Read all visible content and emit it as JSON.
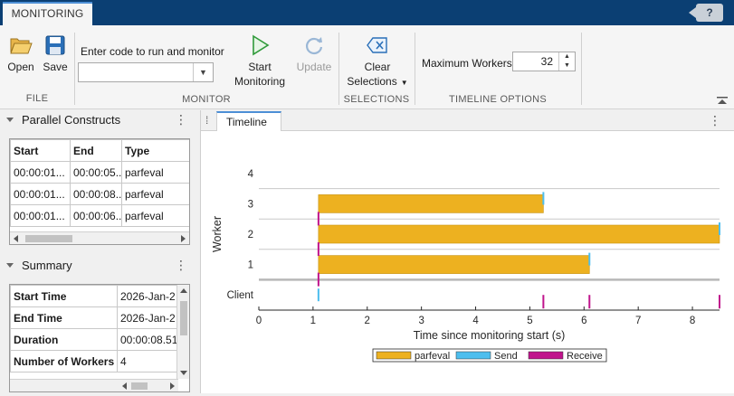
{
  "top_tab": {
    "label": "MONITORING"
  },
  "help_label": "?",
  "toolstrip": {
    "file": {
      "title": "FILE",
      "open_label": "Open",
      "save_label": "Save"
    },
    "monitor": {
      "title": "MONITOR",
      "code_label": "Enter code to run and monitor",
      "code_value": "",
      "start_label_1": "Start",
      "start_label_2": "Monitoring",
      "update_label": "Update"
    },
    "selections": {
      "title": "SELECTIONS",
      "clear_label_1": "Clear",
      "clear_label_2": "Selections"
    },
    "timeline_options": {
      "title": "TIMELINE OPTIONS",
      "max_workers_label": "Maximum Workers",
      "max_workers_value": "32"
    }
  },
  "parallel_constructs": {
    "title": "Parallel Constructs",
    "columns": [
      "Start",
      "End",
      "Type"
    ],
    "rows": [
      [
        "00:00:01...",
        "00:00:05...",
        "parfeval"
      ],
      [
        "00:00:01...",
        "00:00:08...",
        "parfeval"
      ],
      [
        "00:00:01...",
        "00:00:06...",
        "parfeval"
      ]
    ]
  },
  "summary": {
    "title": "Summary",
    "rows": [
      [
        "Start Time",
        "2026-Jan-2"
      ],
      [
        "End Time",
        "2026-Jan-2"
      ],
      [
        "Duration",
        "00:00:08.51"
      ],
      [
        "Number of Workers",
        "4"
      ]
    ]
  },
  "document": {
    "tab_label": "Timeline",
    "menu_glyph": "⁞"
  },
  "icons": {
    "open": "folder-open-icon",
    "save": "floppy-disk-icon",
    "start": "play-icon",
    "update": "refresh-icon",
    "clear": "clear-selection-icon"
  },
  "colors": {
    "parfeval": "#edb120",
    "send": "#4dbeee",
    "receive": "#c0148c",
    "tabstrip": "#0b3f73"
  },
  "chart_data": {
    "type": "bar",
    "orientation": "horizontal-timeline",
    "xlabel": "Time since monitoring start (s)",
    "ylabel": "Worker",
    "xlim": [
      0,
      8.5
    ],
    "xticks": [
      0,
      1,
      2,
      3,
      4,
      5,
      6,
      7,
      8
    ],
    "rows": [
      "Client",
      "1",
      "2",
      "3",
      "4"
    ],
    "series": [
      {
        "name": "parfeval",
        "color": "#edb120",
        "intervals": [
          {
            "row": "3",
            "start": 1.1,
            "end": 5.25
          },
          {
            "row": "2",
            "start": 1.1,
            "end": 8.5
          },
          {
            "row": "1",
            "start": 1.1,
            "end": 6.1
          }
        ]
      },
      {
        "name": "Send",
        "color": "#4dbeee",
        "events": [
          {
            "row": "Client",
            "t": 1.1
          },
          {
            "row": "3",
            "t": 5.25
          },
          {
            "row": "2",
            "t": 8.5
          },
          {
            "row": "1",
            "t": 6.1
          }
        ]
      },
      {
        "name": "Receive",
        "color": "#c0148c",
        "events": [
          {
            "row": "3",
            "t": 1.1
          },
          {
            "row": "2",
            "t": 1.1
          },
          {
            "row": "1",
            "t": 1.1
          },
          {
            "row": "Client",
            "t": 5.25
          },
          {
            "row": "Client",
            "t": 6.1
          },
          {
            "row": "Client",
            "t": 8.5
          }
        ]
      }
    ],
    "legend": {
      "position": "bottom",
      "entries": [
        "parfeval",
        "Send",
        "Receive"
      ]
    }
  }
}
